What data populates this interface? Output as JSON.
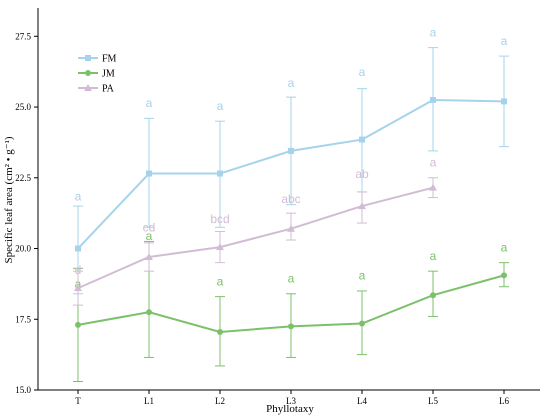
{
  "chart_data": {
    "type": "line",
    "title": "",
    "xlabel": "Phyllotaxy",
    "ylabel": "Specific leaf area (cm² • g⁻¹)",
    "categories": [
      "T",
      "L1",
      "L2",
      "L3",
      "L4",
      "L5",
      "L6"
    ],
    "ylim": [
      15.0,
      28.5
    ],
    "yticks": [
      "15.0",
      "17.5",
      "20.0",
      "22.5",
      "25.0",
      "27.5"
    ],
    "ytick_values": [
      15.0,
      17.5,
      20.0,
      22.5,
      25.0,
      27.5
    ],
    "grid": false,
    "legend_position": "top-left",
    "series": [
      {
        "name": "FM",
        "color": "#a6d3ec",
        "values": [
          20.0,
          22.65,
          22.65,
          23.45,
          23.85,
          25.25,
          25.2
        ],
        "err_low": [
          18.4,
          20.75,
          20.75,
          21.55,
          22.0,
          23.45,
          23.6
        ],
        "err_high": [
          21.5,
          24.6,
          24.5,
          25.35,
          25.65,
          27.1,
          26.8
        ],
        "labels": [
          "a",
          "a",
          "a",
          "a",
          "a",
          "a",
          "a"
        ],
        "label_y": [
          21.7,
          25.0,
          24.9,
          25.7,
          26.1,
          27.5,
          27.2
        ]
      },
      {
        "name": "JM",
        "color": "#7cc16a",
        "values": [
          17.3,
          17.75,
          17.05,
          17.25,
          17.35,
          18.35,
          19.05
        ],
        "err_low": [
          15.3,
          16.15,
          15.85,
          16.15,
          16.25,
          17.6,
          18.65
        ],
        "err_high": [
          19.3,
          20.25,
          18.3,
          18.4,
          18.5,
          19.2,
          19.5
        ],
        "labels": [
          "a",
          "a",
          "a",
          "a",
          "a",
          "a",
          "a"
        ],
        "label_y": [
          18.6,
          20.3,
          18.7,
          18.8,
          18.9,
          19.6,
          19.9
        ]
      },
      {
        "name": "PA",
        "color": "#d2bcd5",
        "values": [
          18.6,
          19.7,
          20.05,
          20.7,
          21.5,
          22.15,
          null
        ],
        "err_low": [
          18.0,
          19.2,
          19.5,
          20.3,
          20.9,
          21.8,
          null
        ],
        "err_high": [
          19.2,
          20.2,
          20.6,
          21.25,
          22.0,
          22.5,
          null
        ],
        "labels": [
          "d",
          "cd",
          "bcd",
          "abc",
          "ab",
          "a",
          ""
        ],
        "label_y": [
          19.1,
          20.6,
          20.9,
          21.6,
          22.5,
          22.9,
          null
        ]
      }
    ]
  }
}
